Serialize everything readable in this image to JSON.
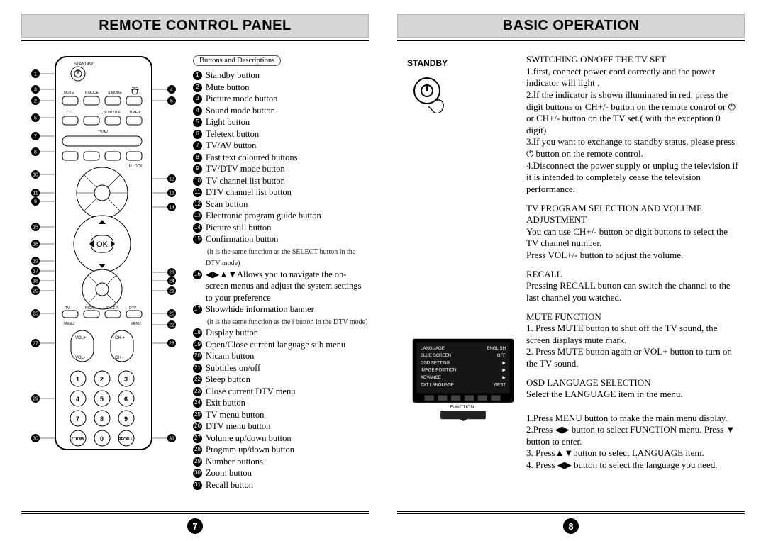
{
  "left": {
    "title": "REMOTE CONTROL PANEL",
    "tag": "Buttons and Descriptions",
    "page_number": "7",
    "remote_labels": {
      "standby": "STANDBY",
      "mute": "MUTE",
      "pmode": "P.MODE",
      "smode": "S.MODE",
      "cc": "CC",
      "subtitle": "SUBTITLE",
      "timer": "TIMER",
      "tvav": "TV/AV",
      "hlock": "H.LOCK",
      "tvdtv": "TV/DTV",
      "chlist": "CH.LIST",
      "scan": "SCAN",
      "dtlist": "DT.LIST",
      "guide": "GUIDE",
      "still": "STILL",
      "ok": "OK",
      "info": "INFO",
      "esc": "ESC",
      "display": "DISPLAY",
      "exit": "EXIT",
      "lr": "L/II",
      "sub": "SUB",
      "tv": "TV",
      "nicam": "NICAM",
      "sleep": "SLEEP",
      "dtv": "DTV",
      "menu1": "MENU",
      "menu2": "MENU",
      "volp": "VOL+",
      "volm": "VOL-",
      "chp": "CH +",
      "chm": "CH -",
      "zoom": "ZOOM",
      "recall": "RECALL"
    },
    "callouts_left": [
      "1",
      "3",
      "2",
      "6",
      "7",
      "8",
      "10",
      "11",
      "9",
      "15",
      "16",
      "19",
      "17",
      "18",
      "20",
      "25",
      "27",
      "29",
      "30"
    ],
    "callouts_right": [
      "4",
      "5",
      "12",
      "13",
      "14",
      "23",
      "24",
      "21",
      "26",
      "22",
      "28",
      "31"
    ],
    "desc": [
      {
        "n": "1",
        "t": "Standby button"
      },
      {
        "n": "2",
        "t": "Mute button"
      },
      {
        "n": "3",
        "t": "Picture mode button"
      },
      {
        "n": "4",
        "t": "Sound mode button"
      },
      {
        "n": "5",
        "t": "Light button"
      },
      {
        "n": "6",
        "t": "Teletext button"
      },
      {
        "n": "7",
        "t": "TV/AV button"
      },
      {
        "n": "8",
        "t": "Fast text coloured buttons"
      },
      {
        "n": "9",
        "t": "TV/DTV mode button"
      },
      {
        "n": "10",
        "t": "TV channel list button"
      },
      {
        "n": "11",
        "t": "DTV channel list button"
      },
      {
        "n": "12",
        "t": "Scan button"
      },
      {
        "n": "13",
        "t": "Electronic program guide button"
      },
      {
        "n": "14",
        "t": "Picture still button"
      },
      {
        "n": "15",
        "t": "Confirmation button",
        "note": "(it is the same function as the SELECT button in the DTV mode)"
      },
      {
        "n": "16",
        "t": "◀▶▲▼Allows you to navigate the on-screen menus and adjust the system settings to your preference"
      },
      {
        "n": "17",
        "t": "Show/hide information banner",
        "note": "(it is the same function as the i button in the DTV mode)"
      },
      {
        "n": "18",
        "t": "Display button"
      },
      {
        "n": "19",
        "t": "Open/Close current language sub menu"
      },
      {
        "n": "20",
        "t": "Nicam button"
      },
      {
        "n": "21",
        "t": "Subtitles on/off"
      },
      {
        "n": "22",
        "t": "Sleep button"
      },
      {
        "n": "23",
        "t": "Close current DTV menu"
      },
      {
        "n": "24",
        "t": "Exit button"
      },
      {
        "n": "25",
        "t": "TV menu button"
      },
      {
        "n": "26",
        "t": "DTV menu button"
      },
      {
        "n": "27",
        "t": "Volume up/down button"
      },
      {
        "n": "28",
        "t": "Program up/down button"
      },
      {
        "n": "29",
        "t": "Number buttons"
      },
      {
        "n": "30",
        "t": "Zoom button"
      },
      {
        "n": "31",
        "t": "Recall button"
      }
    ]
  },
  "right": {
    "title": "BASIC OPERATION",
    "page_number": "8",
    "standby_label": "STANDBY",
    "osd_menu": {
      "rows": [
        [
          "LANGUAGE",
          "ENGLISH"
        ],
        [
          "BLUE SCREEN",
          "OFF"
        ],
        [
          "OSD SETTING",
          "▶"
        ],
        [
          "IMAGE POSITION",
          "▶"
        ],
        [
          "ADVANCE",
          "▶"
        ],
        [
          "TXT LANGUAGE",
          "WEST"
        ]
      ],
      "footer": "FUNCTION"
    },
    "sections": [
      {
        "h": "SWITCHING ON/OFF THE TV SET",
        "lines": [
          "1.first, connect power cord correctly and the  power indicator will light .",
          "2.If the indicator is shown illuminated in red, press the digit buttons or CH+/- button on the remote control or ⏻ or CH+/- button on the TV set.( with the exception 0 digit)",
          "3.If you want to exchange to standby status, please press ⏻ button on the remote control.",
          "4.Disconnect the power supply or unplug the television if it is intended to completely cease the television performance."
        ]
      },
      {
        "h": "TV PROGRAM SELECTION AND VOLUME ADJUSTMENT",
        "lines": [
          "You can use CH+/- button or digit buttons to select the TV channel number.",
          "Press VOL+/- button to adjust the volume."
        ]
      },
      {
        "h": "RECALL",
        "lines": [
          "Pressing RECALL button can switch the channel to the last channel you watched."
        ]
      },
      {
        "h": "MUTE FUNCTION",
        "lines": [
          "1. Press MUTE button to shut off the TV sound, the screen displays mute mark.",
          "2. Press MUTE button again or VOL+ button to turn on the TV sound."
        ]
      },
      {
        "h": "OSD LANGUAGE SELECTION",
        "lines": [
          "Select the LANGUAGE item in the menu.",
          "",
          "1.Press MENU button to make the main menu display.",
          "2.Press ◀▶ button to select FUNCTION menu. Press ▼ button to enter.",
          "3. Press▲▼button to select LANGUAGE item.",
          "4. Press ◀▶ button to select the language you need."
        ]
      }
    ]
  },
  "colors": {
    "banner_bg": "#d6d6d6",
    "banner_border": "#b8b8b8"
  }
}
